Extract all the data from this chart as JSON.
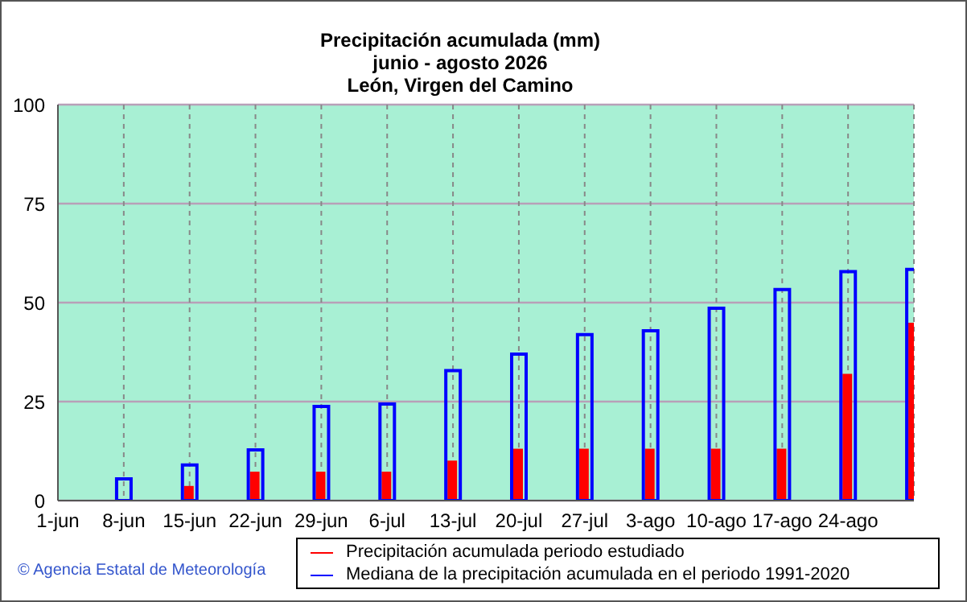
{
  "chart_data": {
    "type": "bar",
    "title": "Precipitación acumulada (mm)",
    "subtitle": "junio - agosto 2026\nLeón, Virgen del Camino",
    "categories": [
      "1-jun",
      "8-jun",
      "15-jun",
      "22-jun",
      "29-jun",
      "6-jul",
      "13-jul",
      "20-jul",
      "27-jul",
      "3-ago",
      "10-ago",
      "17-ago",
      "24-ago",
      null
    ],
    "series": [
      {
        "name": "Precipitación acumulada periodo estudiado",
        "color": "#ff0000",
        "values": [
          0,
          0,
          3.7,
          7.3,
          7.3,
          7.3,
          10.1,
          13.1,
          13.1,
          13.1,
          13.1,
          13.1,
          32,
          44.9
        ]
      },
      {
        "name": "Mediana de la precipitación acumulada en el periodo 1991-2020",
        "color": "#0000ff",
        "values": [
          0,
          5.5,
          9,
          12.8,
          23.8,
          24.4,
          32.8,
          37,
          41.9,
          42.9,
          48.6,
          53.3,
          57.8,
          58.4
        ]
      }
    ],
    "ylim": [
      0,
      100
    ],
    "yticks": [
      0,
      25,
      50,
      75,
      100
    ],
    "grid": true,
    "legend": "bottom right",
    "annotations": [
      "© Agencia Estatal de Meteorología"
    ]
  }
}
